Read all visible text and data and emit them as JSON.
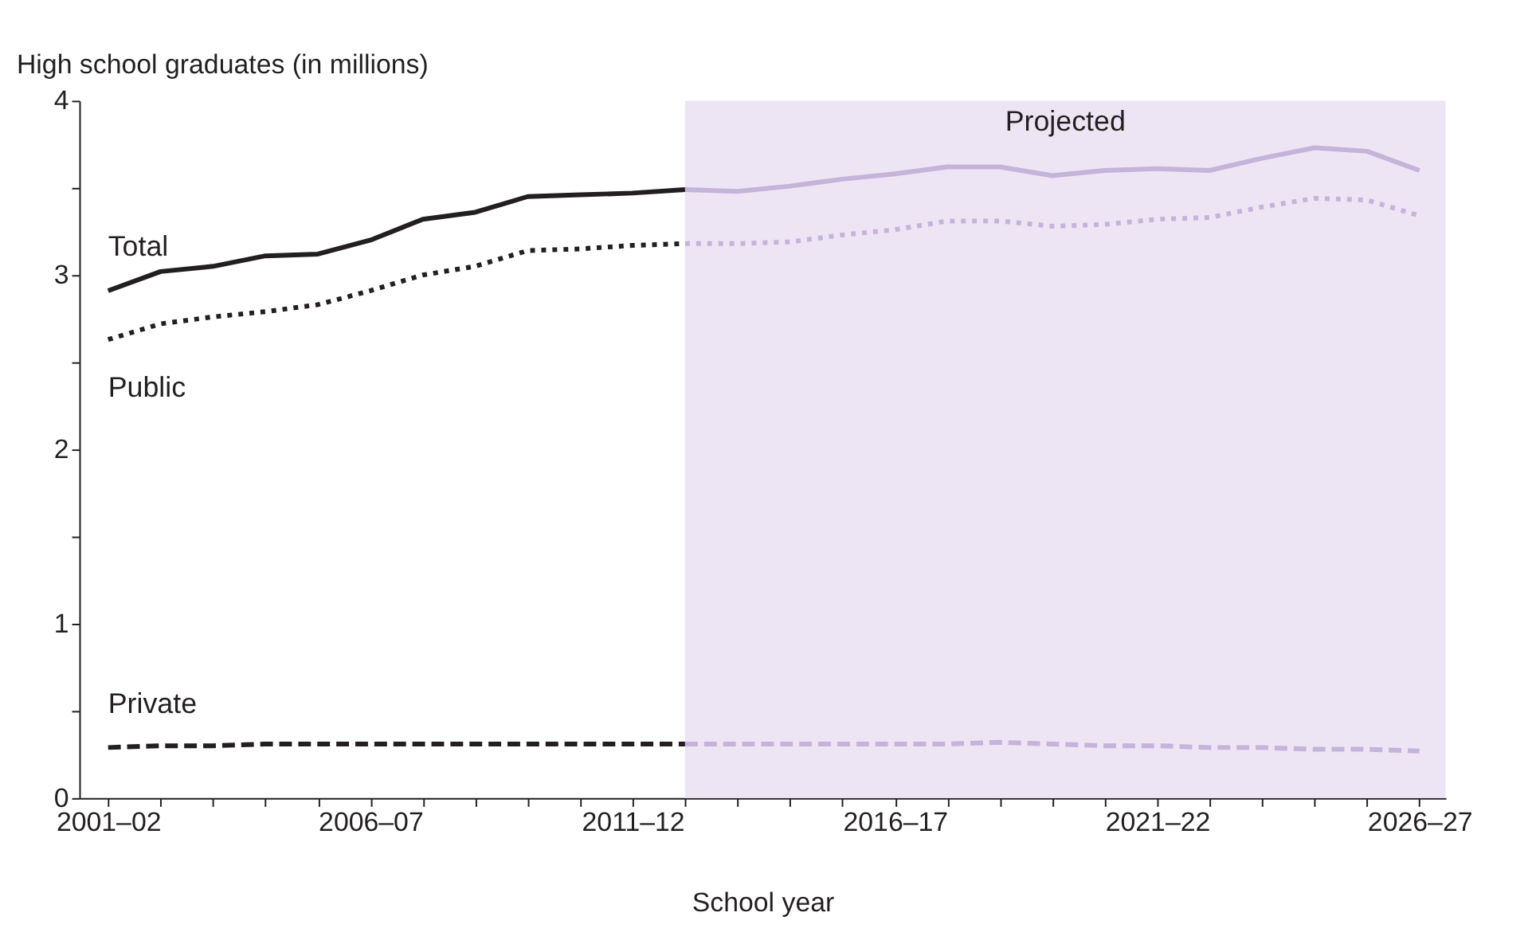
{
  "chart_data": {
    "type": "line",
    "ylabel": "High school graduates (in millions)",
    "xlabel": "School year",
    "categories": [
      "2001–02",
      null,
      null,
      null,
      null,
      "2006–07",
      null,
      null,
      null,
      null,
      "2011–12",
      null,
      null,
      null,
      null,
      "2016–17",
      null,
      null,
      null,
      null,
      "2021–22",
      null,
      null,
      null,
      null,
      "2026–27"
    ],
    "ylim": [
      0,
      4
    ],
    "yticks": [
      0,
      {
        "value": 0.5,
        "label": null
      },
      1,
      {
        "value": 1.5,
        "label": null
      },
      2,
      {
        "value": 2.5,
        "label": null
      },
      3,
      {
        "value": 3.5,
        "label": null
      },
      4
    ],
    "grid": false,
    "annotations": [
      "Projected"
    ],
    "series": [
      {
        "name": "Total",
        "color": "#231f20",
        "line_style": "solid",
        "values": [
          2.91,
          3.02,
          3.05,
          3.11,
          3.12,
          3.2,
          3.32,
          3.36,
          3.45,
          3.46,
          3.47,
          3.49,
          null,
          null,
          null,
          null,
          null,
          null,
          null,
          null,
          null,
          null,
          null,
          null,
          null,
          null
        ]
      },
      {
        "color": "#c5b3da",
        "line_style": "solid",
        "values": [
          null,
          null,
          null,
          null,
          null,
          null,
          null,
          null,
          null,
          null,
          null,
          3.49,
          3.48,
          3.51,
          3.55,
          3.58,
          3.62,
          3.62,
          3.57,
          3.6,
          3.61,
          3.6,
          3.67,
          3.73,
          3.71,
          3.6
        ]
      },
      {
        "name": "Public",
        "color": "#231f20",
        "line_style": "dotted",
        "values": [
          2.63,
          2.72,
          2.76,
          2.79,
          2.83,
          2.91,
          3.0,
          3.05,
          3.14,
          3.15,
          3.17,
          3.18,
          null,
          null,
          null,
          null,
          null,
          null,
          null,
          null,
          null,
          null,
          null,
          null,
          null,
          null
        ]
      },
      {
        "color": "#c5b3da",
        "line_style": "dotted",
        "values": [
          null,
          null,
          null,
          null,
          null,
          null,
          null,
          null,
          null,
          null,
          null,
          3.18,
          3.18,
          3.19,
          3.23,
          3.26,
          3.31,
          3.31,
          3.28,
          3.29,
          3.32,
          3.33,
          3.39,
          3.44,
          3.43,
          3.34
        ]
      },
      {
        "name": "Private",
        "color": "#231f20",
        "line_style": "dashed",
        "values": [
          0.29,
          0.3,
          0.3,
          0.31,
          0.31,
          0.31,
          0.31,
          0.31,
          0.31,
          0.31,
          0.31,
          0.31,
          null,
          null,
          null,
          null,
          null,
          null,
          null,
          null,
          null,
          null,
          null,
          null,
          null,
          null
        ]
      },
      {
        "color": "#c5b3da",
        "line_style": "dashed",
        "values": [
          null,
          null,
          null,
          null,
          null,
          null,
          null,
          null,
          null,
          null,
          null,
          0.31,
          0.31,
          0.31,
          0.31,
          0.31,
          0.31,
          0.32,
          0.31,
          0.3,
          0.3,
          0.29,
          0.29,
          0.28,
          0.28,
          0.27
        ]
      }
    ]
  }
}
